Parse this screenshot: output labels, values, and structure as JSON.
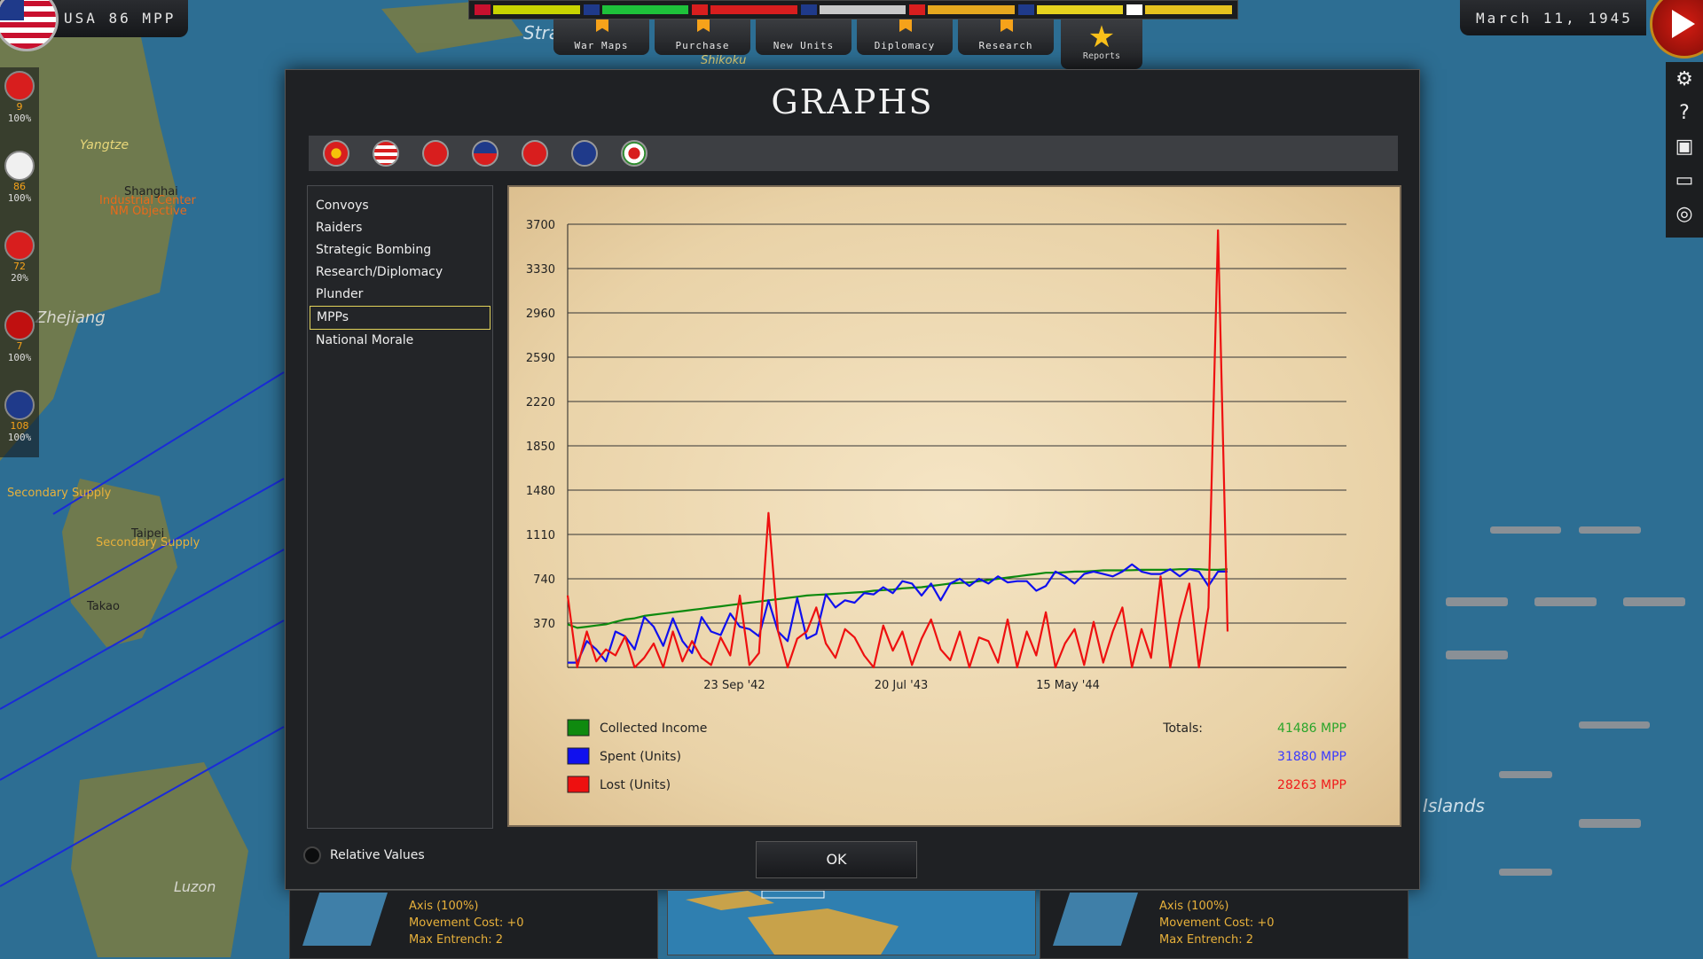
{
  "top_bar": {
    "mpp_label": "USA 86 MPP",
    "date": "March 11, 1945",
    "menu": [
      "War Maps",
      "Purchase",
      "New Units",
      "Diplomacy",
      "Research"
    ],
    "reports_label": "Reports",
    "nation_bar_colors": [
      "#c8d400",
      "#1ec23a",
      "#d81e1e",
      "#c8c8c8",
      "#e6a81e",
      "#e6d21e"
    ]
  },
  "left_nations": [
    {
      "mpp": "9",
      "morale": "100%",
      "color": "#d81e1e"
    },
    {
      "mpp": "86",
      "morale": "100%",
      "color": "#f0f0f0"
    },
    {
      "mpp": "72",
      "morale": "20%",
      "color": "#d81e1e"
    },
    {
      "mpp": "7",
      "morale": "100%",
      "color": "#c01010"
    },
    {
      "mpp": "108",
      "morale": "100%",
      "color": "#1f3a8a"
    }
  ],
  "map_labels": {
    "yangtze": "Yangtze",
    "shanghai": "Shanghai",
    "industrial_center": "Industrial Center",
    "nm_objective": "NM Objective",
    "zhejiang": "Zhejiang",
    "secondary_supply_1": "Secondary Supply",
    "taipei": "Taipei",
    "secondary_supply_2": "Secondary Supply",
    "takao": "Takao",
    "luzon": "Luzon",
    "islands": "Islands",
    "strait": "Strait",
    "shikoku": "Shikoku"
  },
  "dialog": {
    "title": "GRAPHS",
    "flags": [
      {
        "name": "china-nationalist",
        "color": "#d81e1e"
      },
      {
        "name": "usa",
        "color": "#f0f0f0"
      },
      {
        "name": "ussr",
        "color": "#d81e1e"
      },
      {
        "name": "philippines",
        "color": "#1f3a8a"
      },
      {
        "name": "china-communist",
        "color": "#d81e1e"
      },
      {
        "name": "australia",
        "color": "#1f3a8a"
      },
      {
        "name": "japan",
        "color": "#2a8a2a"
      }
    ],
    "categories": [
      "Convoys",
      "Raiders",
      "Strategic Bombing",
      "Research/Diplomacy",
      "Plunder",
      "MPPs",
      "National Morale"
    ],
    "selected_category": "MPPs",
    "relative_values_label": "Relative Values",
    "ok_label": "OK"
  },
  "chart_data": {
    "type": "line",
    "y_ticks": [
      370,
      740,
      1110,
      1480,
      1850,
      2220,
      2590,
      2960,
      3330,
      3700
    ],
    "ylim": [
      0,
      3700
    ],
    "x_ticks": [
      "23 Sep '42",
      "20 Jul '43",
      "15 May '44"
    ],
    "grid": "horizontal",
    "legend": [
      {
        "label": "Collected Income",
        "color": "#0f8a0f",
        "total": "41486 MPP"
      },
      {
        "label": "Spent (Units)",
        "color": "#1010ee",
        "total": "31880 MPP"
      },
      {
        "label": "Lost (Units)",
        "color": "#ee1010",
        "total": "28263 MPP"
      }
    ],
    "totals_label": "Totals:",
    "series": [
      {
        "name": "Collected Income",
        "color": "#0f8a0f",
        "values": [
          360,
          330,
          340,
          350,
          360,
          380,
          400,
          410,
          430,
          440,
          450,
          460,
          470,
          480,
          490,
          500,
          510,
          520,
          530,
          540,
          550,
          560,
          570,
          580,
          590,
          600,
          605,
          610,
          615,
          620,
          625,
          630,
          640,
          645,
          650,
          660,
          665,
          670,
          680,
          690,
          700,
          705,
          710,
          720,
          730,
          740,
          750,
          760,
          770,
          780,
          790,
          790,
          795,
          800,
          800,
          805,
          810,
          810,
          810,
          812,
          815,
          815,
          815,
          815,
          820,
          820,
          820,
          815,
          815,
          820
        ]
      },
      {
        "name": "Spent (Units)",
        "color": "#1010ee",
        "values": [
          40,
          40,
          220,
          150,
          50,
          300,
          260,
          150,
          420,
          340,
          180,
          410,
          220,
          120,
          420,
          300,
          270,
          450,
          340,
          320,
          260,
          560,
          300,
          220,
          580,
          240,
          280,
          610,
          500,
          560,
          540,
          620,
          610,
          670,
          620,
          720,
          700,
          600,
          700,
          560,
          700,
          740,
          680,
          740,
          700,
          760,
          710,
          720,
          720,
          640,
          680,
          800,
          760,
          700,
          780,
          800,
          780,
          760,
          800,
          860,
          800,
          780,
          780,
          820,
          760,
          820,
          800,
          680,
          800,
          800
        ]
      },
      {
        "name": "Lost (Units)",
        "color": "#ee1010",
        "values": [
          600,
          0,
          300,
          50,
          150,
          100,
          260,
          0,
          80,
          200,
          0,
          300,
          50,
          220,
          80,
          20,
          250,
          100,
          600,
          20,
          120,
          1290,
          300,
          0,
          240,
          300,
          500,
          200,
          80,
          320,
          250,
          100,
          0,
          350,
          140,
          300,
          20,
          240,
          400,
          150,
          60,
          300,
          0,
          250,
          220,
          40,
          400,
          0,
          300,
          100,
          460,
          0,
          200,
          320,
          20,
          380,
          40,
          300,
          500,
          0,
          320,
          80,
          760,
          0,
          400,
          700,
          0,
          500,
          3650,
          300
        ]
      }
    ]
  },
  "bottom_info": {
    "left": {
      "line1": "Axis (100%)",
      "line2": "Movement Cost: +0",
      "line3": "Max Entrench: 2"
    },
    "right": {
      "line1": "Axis (100%)",
      "line2": "Movement Cost: +0",
      "line3": "Max Entrench: 2"
    }
  }
}
